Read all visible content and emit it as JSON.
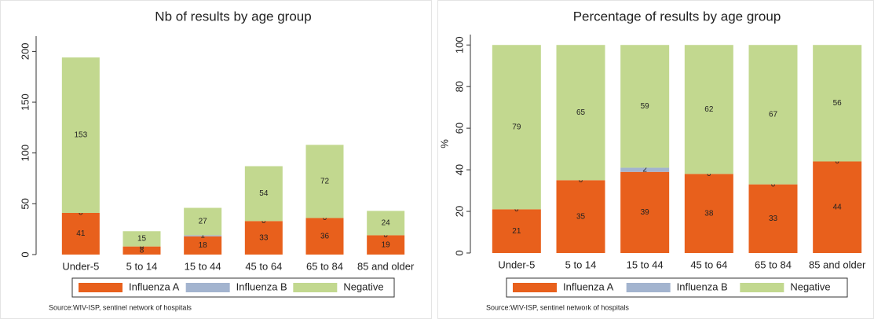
{
  "chart_data": [
    {
      "type": "bar",
      "stacked": true,
      "title": "Nb of results by age group",
      "categories": [
        "Under-5",
        "5 to 14",
        "15 to 44",
        "45 to 64",
        "65 to 84",
        "85 and older"
      ],
      "series": [
        {
          "name": "Influenza A",
          "color": "#e8601c",
          "values": [
            41,
            8,
            18,
            33,
            36,
            19
          ]
        },
        {
          "name": "Influenza B",
          "color": "#a3b4cf",
          "values": [
            0,
            0,
            1,
            0,
            0,
            0
          ]
        },
        {
          "name": "Negative",
          "color": "#c2d88f",
          "values": [
            153,
            15,
            27,
            54,
            72,
            24
          ]
        }
      ],
      "ylim": [
        0,
        215
      ],
      "yticks": [
        0,
        50,
        100,
        150,
        200
      ],
      "legend": "bottom",
      "source": "Source:WIV-ISP, sentinel network of hospitals"
    },
    {
      "type": "bar",
      "stacked": true,
      "title": "Percentage of results by age group",
      "categories": [
        "Under-5",
        "5 to 14",
        "15 to 44",
        "45 to 64",
        "65 to 84",
        "85 and older"
      ],
      "series": [
        {
          "name": "Influenza A",
          "color": "#e8601c",
          "values": [
            21,
            35,
            39,
            38,
            33,
            44
          ]
        },
        {
          "name": "Influenza B",
          "color": "#a3b4cf",
          "values": [
            0,
            0,
            2,
            0,
            0,
            0
          ]
        },
        {
          "name": "Negative",
          "color": "#c2d88f",
          "values": [
            79,
            65,
            59,
            62,
            67,
            56
          ]
        }
      ],
      "ylabel": "%",
      "ylim": [
        0,
        105
      ],
      "yticks": [
        0,
        20,
        40,
        60,
        80,
        100
      ],
      "legend": "bottom",
      "source": "Source:WIV-ISP, sentinel network of hospitals"
    }
  ]
}
